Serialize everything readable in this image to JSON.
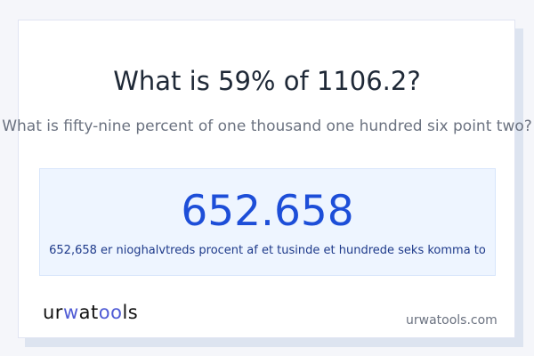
{
  "title": "What is 59% of 1106.2?",
  "subtitle": "What is fifty-nine percent of one thousand one hundred six point two?",
  "result": {
    "value": "652.658",
    "words": "652,658 er nioghalvtreds procent af et tusinde et hundrede seks komma to"
  },
  "footer": {
    "logo": "urwatools",
    "site": "urwatools.com"
  },
  "colors": {
    "accent": "#1d4ed8",
    "result_bg": "#eef5ff",
    "logo_accent": "#4f5bd5"
  }
}
